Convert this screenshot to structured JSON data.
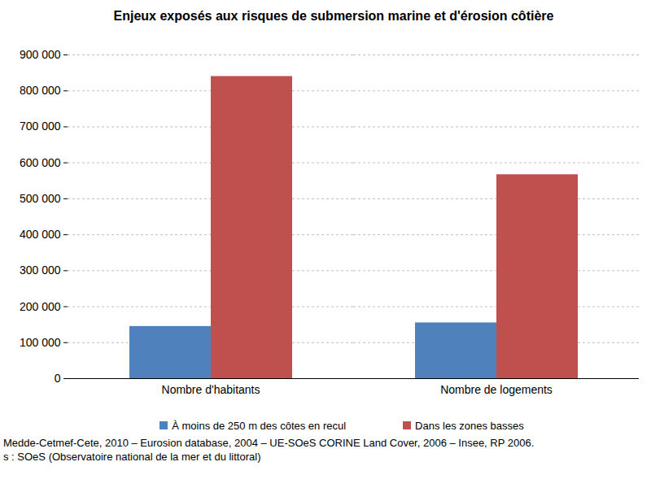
{
  "chart_data": {
    "type": "bar",
    "title": "Enjeux exposés aux risques de submersion marine et d'érosion côtière",
    "categories": [
      "Nombre d'habitants",
      "Nombre de logements"
    ],
    "series": [
      {
        "name": "À moins de 250 m des côtes en recul",
        "color": "#4f81bd",
        "values": [
          145000,
          155000
        ]
      },
      {
        "name": "Dans les zones basses",
        "color": "#c0504d",
        "values": [
          840000,
          567000
        ]
      }
    ],
    "ylim": [
      0,
      900000
    ],
    "yticks": [
      0,
      {
        "value": 100000,
        "label": "100 000"
      },
      {
        "value": 200000,
        "label": "200 000"
      },
      {
        "value": 300000,
        "label": "300 000"
      },
      {
        "value": 400000,
        "label": "400 000"
      },
      {
        "value": 500000,
        "label": "500 000"
      },
      {
        "value": 600000,
        "label": "600 000"
      },
      {
        "value": 700000,
        "label": "700 000"
      },
      {
        "value": 800000,
        "label": "800 000"
      },
      {
        "value": 900000,
        "label": "900 000"
      }
    ],
    "grid": true,
    "legend": "bottom",
    "annotations": [
      "Medde-Cetmef-Cete, 2010 – Eurosion database, 2004 – UE-SOeS CORINE Land Cover, 2006 – Insee, RP 2006.",
      "s : SOeS (Observatoire national de la mer et du littoral)"
    ]
  }
}
